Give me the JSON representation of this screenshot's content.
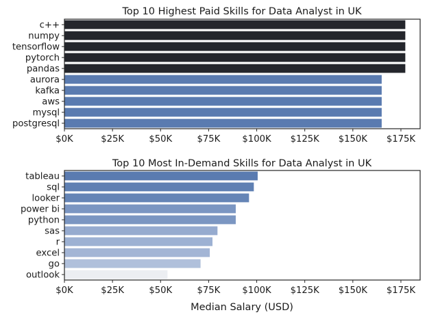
{
  "chart_data": [
    {
      "type": "bar",
      "orientation": "horizontal",
      "title": "Top 10 Highest Paid Skills for Data Analyst in UK",
      "xlabel": "",
      "ylabel": "",
      "categories": [
        "c++",
        "numpy",
        "tensorflow",
        "pytorch",
        "pandas",
        "aurora",
        "kafka",
        "aws",
        "mysql",
        "postgresql"
      ],
      "values": [
        177283,
        177283,
        177283,
        177283,
        177283,
        165000,
        165000,
        165000,
        165000,
        165000
      ],
      "bar_colors": [
        "#24262c",
        "#24262c",
        "#24262c",
        "#24262c",
        "#24262c",
        "#5a7bb0",
        "#5a7bb0",
        "#5a7bb0",
        "#5a7bb0",
        "#5a7bb0"
      ],
      "xlim": [
        0,
        185000
      ],
      "xticks": [
        0,
        25000,
        50000,
        75000,
        100000,
        125000,
        150000,
        175000
      ],
      "xtick_labels": [
        "$0K",
        "$25K",
        "$50K",
        "$75K",
        "$100K",
        "$125K",
        "$150K",
        "$175K"
      ],
      "grid": false
    },
    {
      "type": "bar",
      "orientation": "horizontal",
      "title": "Top 10 Most In-Demand Skills for Data Analyst in UK",
      "xlabel": "Median Salary (USD)",
      "ylabel": "",
      "categories": [
        "tableau",
        "sql",
        "looker",
        "power bi",
        "python",
        "sas",
        "r",
        "excel",
        "go",
        "outlook"
      ],
      "values": [
        100500,
        98500,
        96000,
        89100,
        89100,
        79600,
        77000,
        75600,
        70800,
        53600
      ],
      "bar_colors": [
        "#5a7bb0",
        "#5f80b3",
        "#6585b6",
        "#7b96c2",
        "#7b96c2",
        "#96abcf",
        "#9db1d3",
        "#a3b5d5",
        "#b0c0db",
        "#eceef2"
      ],
      "xlim": [
        0,
        185000
      ],
      "xticks": [
        0,
        25000,
        50000,
        75000,
        100000,
        125000,
        150000,
        175000
      ],
      "xtick_labels": [
        "$0K",
        "$25K",
        "$50K",
        "$75K",
        "$100K",
        "$125K",
        "$150K",
        "$175K"
      ],
      "grid": false
    }
  ]
}
